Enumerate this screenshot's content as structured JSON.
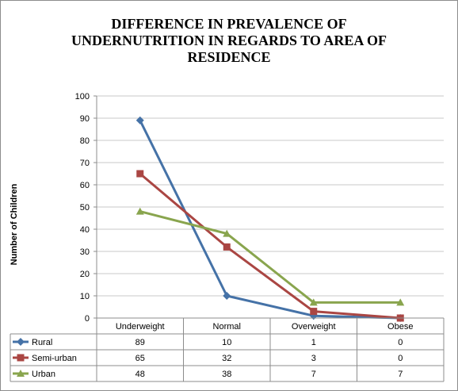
{
  "chart_data": {
    "type": "line",
    "title_lines": [
      "DIFFERENCE IN PREVALENCE OF",
      "UNDERNUTRITION IN REGARDS TO AREA OF",
      "RESIDENCE"
    ],
    "ylabel": "Number of Children",
    "xlabel": "",
    "categories": [
      "Underweight",
      "Normal",
      "Overweight",
      "Obese"
    ],
    "ylim": [
      0,
      100
    ],
    "yticks": [
      "0",
      "10",
      "20",
      "30",
      "40",
      "50",
      "60",
      "70",
      "80",
      "90",
      "100"
    ],
    "grid": "horizontal",
    "legend": "data-table",
    "series": [
      {
        "name": "Rural",
        "values": [
          89,
          10,
          1,
          0
        ],
        "color": "#4572a7",
        "marker": "diamond"
      },
      {
        "name": "Semi-urban",
        "values": [
          65,
          32,
          3,
          0
        ],
        "color": "#aa4643",
        "marker": "square"
      },
      {
        "name": "Urban",
        "values": [
          48,
          38,
          7,
          7
        ],
        "color": "#89a54e",
        "marker": "triangle"
      }
    ]
  }
}
